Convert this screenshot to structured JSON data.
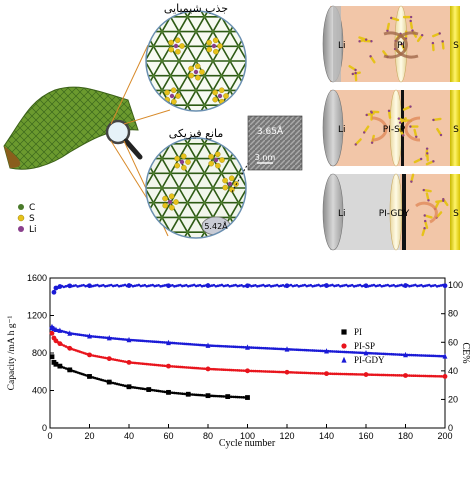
{
  "colors": {
    "carbon": "#4a7a2a",
    "sulfur": "#e6c21a",
    "lithium": "#8a3f8c",
    "cell_bg": "#f2c6a8",
    "pi_series": "#000000",
    "pisp_series": "#e8141c",
    "pigdy_series": "#1a1ad6",
    "ce_series": "#1a1ad6"
  },
  "top_left": {
    "label_chem": "جذب شیمیایی",
    "label_phys": "مانع فیزیکی",
    "tem_spacing": "3.65Å",
    "tem_scale": "3 nm",
    "pore_size": "5.42Å",
    "legend": [
      {
        "symbol": "C",
        "color": "#4a7a2a"
      },
      {
        "symbol": "S",
        "color": "#e6c21a"
      },
      {
        "symbol": "Li",
        "color": "#8a3f8c"
      }
    ],
    "icons": [
      "graphdiyne-sheet-icon",
      "magnifier-icon"
    ]
  },
  "cells": [
    {
      "left": "Li",
      "separator": "PI",
      "right": "S"
    },
    {
      "left": "Li",
      "separator": "PI-SP",
      "right": "S"
    },
    {
      "left": "Li",
      "separator": "PI-GDY",
      "right": "S"
    }
  ],
  "chart_data": {
    "type": "scatter",
    "xlabel": "Cycle number",
    "ylabel": "Capacity /mA h g⁻¹",
    "y2label": "CE%",
    "xlim": [
      0,
      200
    ],
    "ylim": [
      0,
      1600
    ],
    "y2lim": [
      0,
      105
    ],
    "xticks": [
      0,
      20,
      40,
      60,
      80,
      100,
      120,
      140,
      160,
      180,
      200
    ],
    "yticks": [
      0,
      400,
      800,
      1200,
      1600
    ],
    "y2ticks": [
      0,
      20,
      40,
      60,
      80,
      100
    ],
    "legend_position": "right-middle",
    "series": [
      {
        "name": "PI",
        "marker": "square",
        "color": "#000000",
        "axis": "left",
        "x": [
          1,
          2,
          3,
          5,
          10,
          20,
          30,
          40,
          50,
          60,
          70,
          80,
          90,
          100
        ],
        "values": [
          760,
          700,
          680,
          660,
          620,
          550,
          490,
          440,
          410,
          380,
          360,
          345,
          335,
          325
        ]
      },
      {
        "name": "PI-SP",
        "marker": "circle",
        "color": "#e8141c",
        "axis": "left",
        "x": [
          1,
          2,
          3,
          5,
          10,
          20,
          30,
          40,
          60,
          80,
          100,
          120,
          140,
          160,
          180,
          200
        ],
        "values": [
          1010,
          960,
          930,
          900,
          850,
          780,
          740,
          700,
          660,
          630,
          610,
          595,
          580,
          570,
          560,
          550
        ]
      },
      {
        "name": "PI-GDY",
        "marker": "triangle",
        "color": "#1a1ad6",
        "axis": "left",
        "x": [
          1,
          2,
          3,
          5,
          10,
          20,
          30,
          40,
          60,
          80,
          100,
          120,
          140,
          160,
          180,
          200
        ],
        "values": [
          1080,
          1060,
          1050,
          1040,
          1010,
          980,
          960,
          940,
          910,
          880,
          860,
          840,
          820,
          800,
          780,
          765
        ]
      },
      {
        "name": "CE",
        "marker": "circle",
        "color": "#1a1ad6",
        "axis": "right",
        "show_in_legend": false,
        "x": [
          1,
          2,
          3,
          5,
          10,
          20,
          40,
          60,
          80,
          100,
          120,
          140,
          160,
          180,
          200
        ],
        "values": [
          70,
          95,
          98,
          99,
          99.5,
          99.6,
          99.7,
          99.6,
          99.7,
          99.6,
          99.6,
          99.7,
          99.6,
          99.7,
          99.6
        ]
      }
    ]
  }
}
